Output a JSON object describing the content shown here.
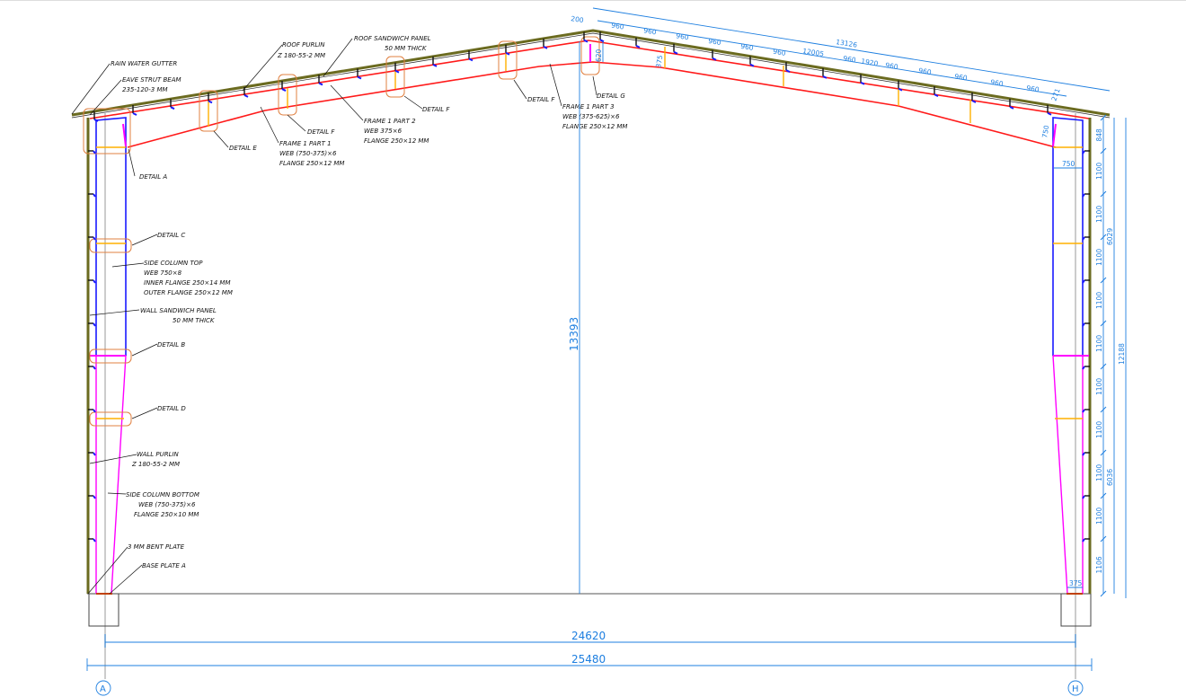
{
  "colors": {
    "frame": "#ff1a1a",
    "column": "#1a1aff",
    "column_bottom": "#ff00ff",
    "dimension": "#1e7fe0",
    "stiffener": "#ffb000",
    "detail_box": "#e08040",
    "panel": "#6b6b20"
  },
  "labels": {
    "rain_water_gutter": "RAIN WATER GUTTER",
    "eave_strut_beam": "EAVE STRUT BEAM",
    "eave_strut_beam_size": "235-120-3 MM",
    "roof_purlin": "ROOF PURLIN",
    "roof_purlin_size": "Z 180-55-2 MM",
    "roof_sandwich_panel": "ROOF SANDWICH PANEL",
    "roof_sandwich_panel_thk": "50 MM THICK",
    "detail_a": "DETAIL A",
    "detail_b": "DETAIL B",
    "detail_c": "DETAIL C",
    "detail_d": "DETAIL D",
    "detail_e": "DETAIL E",
    "detail_f1": "DETAIL F",
    "detail_f2": "DETAIL F",
    "detail_f3": "DETAIL F",
    "detail_g": "DETAIL G",
    "frame_part1": [
      "FRAME 1 PART 1",
      "WEB (750-375)×6",
      "FLANGE 250×12 MM"
    ],
    "frame_part2": [
      "FRAME 1 PART 2",
      "WEB 375×6",
      "FLANGE 250×12 MM"
    ],
    "frame_part3": [
      "FRAME 1 PART 3",
      "WEB (375-625)×6",
      "FLANGE 250×12 MM"
    ],
    "side_column_top": [
      "SIDE COLUMN TOP",
      "WEB 750×8",
      "INNER FLANGE 250×14 MM",
      "OUTER FLANGE 250×12 MM"
    ],
    "wall_sandwich_panel": [
      "WALL SANDWICH PANEL",
      "50 MM THICK"
    ],
    "wall_purlin": [
      "WALL PURLIN",
      "Z 180-55-2 MM"
    ],
    "side_column_bottom": [
      "SIDE COLUMN BOTTOM",
      "WEB (750-375)×6",
      "FLANGE 250×10 MM"
    ],
    "bent_plate": "3 MM BENT PLATE",
    "base_plate": "BASE PLATE A"
  },
  "dimensions": {
    "roof_total": "13126",
    "roof_purlin_run": "12005",
    "apex_offset": "200",
    "roof_spacings_upper": [
      "960",
      "960",
      "960",
      "960",
      "960",
      "960"
    ],
    "roof_spacings_lower": [
      "960",
      "1920",
      "960",
      "960",
      "960",
      "960",
      "960"
    ],
    "roof_end": "271",
    "apex_depth": "620",
    "haunch_depth": "375",
    "eave_depth": "750",
    "column_width": "750",
    "base_width": "375",
    "wall_spacings": [
      "848",
      "1100",
      "1100",
      "1100",
      "1100",
      "1100",
      "1100",
      "1100",
      "1100",
      "1100",
      "1106"
    ],
    "upper_height": "6029",
    "lower_height": "6036",
    "eave_height": "12188",
    "ridge_height": "13393",
    "span_inner": "24620",
    "span_outer": "25480"
  },
  "grids": {
    "left": "A",
    "right": "H"
  }
}
